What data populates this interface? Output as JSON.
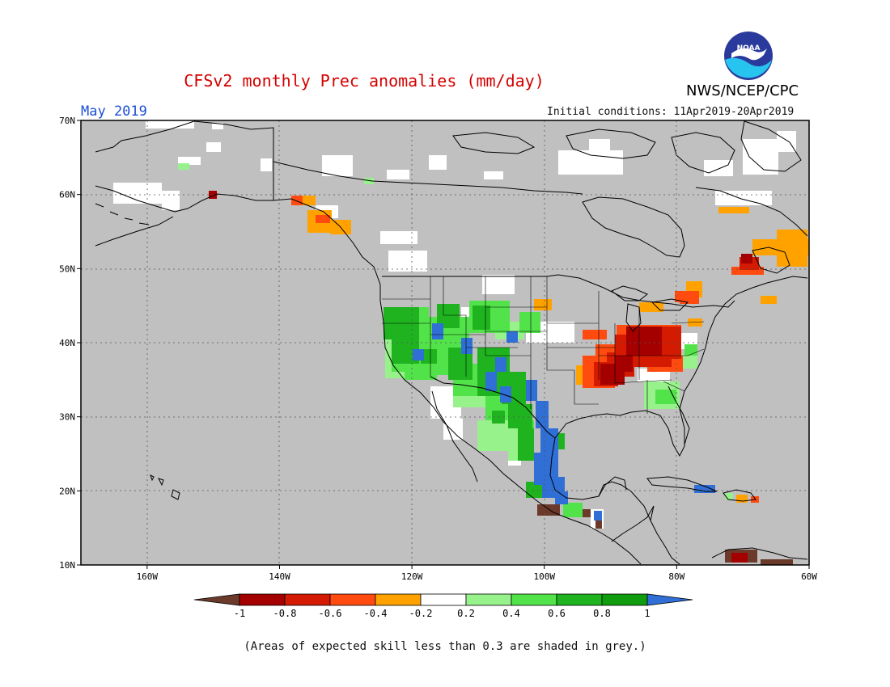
{
  "header": {
    "title": "CFSv2 monthly Prec anomalies (mm/day)",
    "org": "NWS/NCEP/CPC",
    "month": "May 2019",
    "initial_conditions": "Initial conditions: 11Apr2019-20Apr2019",
    "logo_text": "NOAA"
  },
  "footnote": "(Areas of expected skill less than 0.3 are shaded in grey.)",
  "map": {
    "lon_range": [
      -170,
      -60
    ],
    "lat_range": [
      10,
      70
    ],
    "lon_ticks": [
      {
        "lon": -160,
        "label": "160W"
      },
      {
        "lon": -140,
        "label": "140W"
      },
      {
        "lon": -120,
        "label": "120W"
      },
      {
        "lon": -100,
        "label": "100W"
      },
      {
        "lon": -80,
        "label": "80W"
      },
      {
        "lon": -60,
        "label": "60W"
      }
    ],
    "lat_ticks": [
      {
        "lat": 70,
        "label": "70N"
      },
      {
        "lat": 60,
        "label": "60N"
      },
      {
        "lat": 50,
        "label": "50N"
      },
      {
        "lat": 40,
        "label": "40N"
      },
      {
        "lat": 30,
        "label": "30N"
      },
      {
        "lat": 20,
        "label": "20N"
      },
      {
        "lat": 10,
        "label": "10N"
      }
    ],
    "grid_style": "dotted",
    "background_color": "#c0c0c0",
    "coast_color": "#000000"
  },
  "colorbar": {
    "labels": [
      "-1",
      "-0.8",
      "-0.6",
      "-0.4",
      "-0.2",
      "0.2",
      "0.4",
      "0.6",
      "0.8",
      "1"
    ],
    "low_end_color": "#6b3a2a",
    "high_end_color": "#2f6fd6",
    "colors": [
      "#a50000",
      "#d41a00",
      "#ff4a10",
      "#ffa200",
      "#ffffff",
      "#98f28c",
      "#52e34a",
      "#1fb41f",
      "#0f9c0f"
    ]
  },
  "anomaly_regions": [
    {
      "name": "southeast-us-dry",
      "value": -0.8,
      "color": "#a50000"
    },
    {
      "name": "ohio-valley-dry",
      "value": -0.7,
      "color": "#d41a00"
    },
    {
      "name": "southeast-canada-dry",
      "value": -0.4,
      "color": "#ffa200"
    },
    {
      "name": "western-us-wet",
      "value": 0.6,
      "color": "#1fb41f"
    },
    {
      "name": "mexico-gulf-wet",
      "value": 1.0,
      "color": "#2f6fd6"
    }
  ]
}
